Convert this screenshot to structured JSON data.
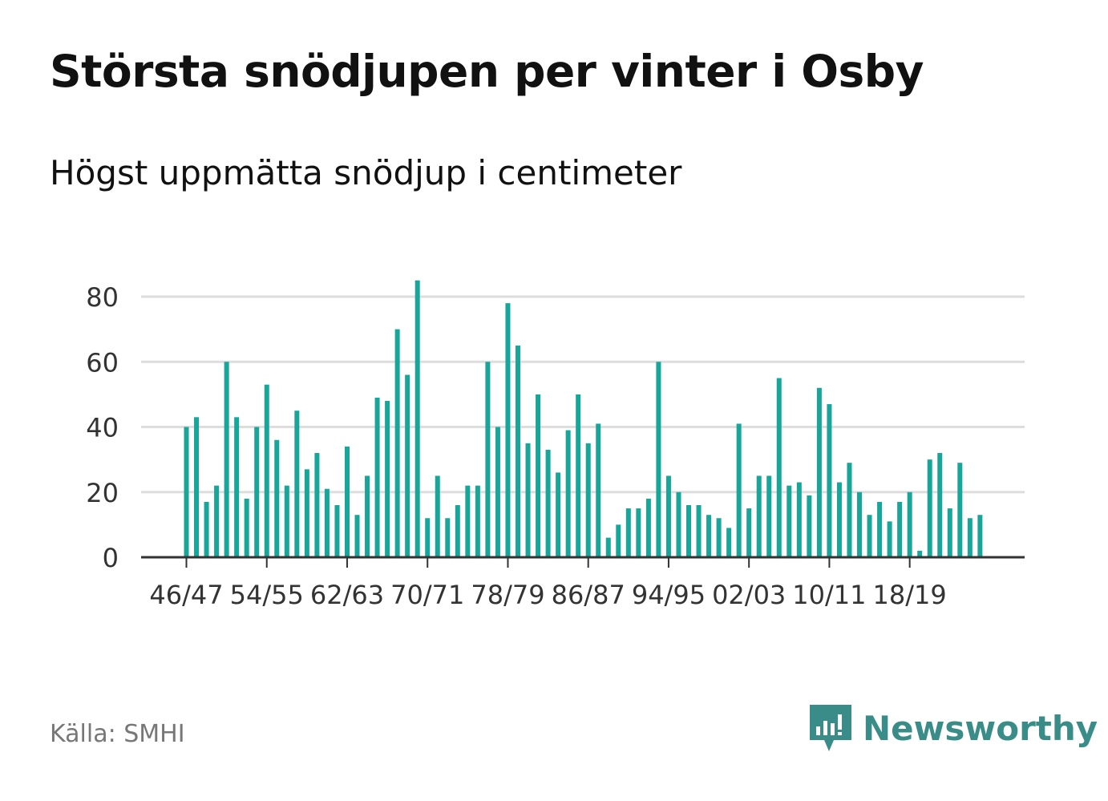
{
  "title": "Största snödjupen per vinter i Osby",
  "subtitle": "Högst uppmätta snödjup i centimeter",
  "source": "Källa: SMHI",
  "brand": {
    "name": "Newsworthy",
    "icon": "newsworthy-chart-icon",
    "color": "#3a8c88"
  },
  "colors": {
    "bar": "#18a59a",
    "grid": "#dddddd",
    "axis": "#333333",
    "tick_text": "#333333"
  },
  "chart_data": {
    "type": "bar",
    "title": "",
    "xlabel": "",
    "ylabel": "",
    "ylim": [
      0,
      85
    ],
    "yticks": [
      0,
      20,
      40,
      60,
      80
    ],
    "grid": true,
    "legend": "none",
    "categories": [
      "46/47",
      "47/48",
      "48/49",
      "49/50",
      "50/51",
      "51/52",
      "52/53",
      "53/54",
      "54/55",
      "55/56",
      "56/57",
      "57/58",
      "58/59",
      "59/60",
      "60/61",
      "61/62",
      "62/63",
      "63/64",
      "64/65",
      "65/66",
      "66/67",
      "67/68",
      "68/69",
      "69/70",
      "70/71",
      "71/72",
      "72/73",
      "73/74",
      "74/75",
      "75/76",
      "76/77",
      "77/78",
      "78/79",
      "79/80",
      "80/81",
      "81/82",
      "82/83",
      "83/84",
      "84/85",
      "85/86",
      "86/87",
      "87/88",
      "88/89",
      "89/90",
      "90/91",
      "91/92",
      "92/93",
      "93/94",
      "94/95",
      "95/96",
      "96/97",
      "97/98",
      "98/99",
      "99/00",
      "00/01",
      "01/02",
      "02/03",
      "03/04",
      "04/05",
      "05/06",
      "06/07",
      "07/08",
      "08/09",
      "09/10",
      "10/11",
      "11/12",
      "12/13",
      "13/14",
      "14/15",
      "15/16",
      "16/17",
      "17/18",
      "18/19",
      "19/20",
      "20/21",
      "21/22",
      "22/23",
      "23/24",
      "24/25",
      "25/26"
    ],
    "labeled_categories": [
      "46/47",
      "54/55",
      "62/63",
      "70/71",
      "78/79",
      "86/87",
      "94/95",
      "02/03",
      "10/11",
      "18/19"
    ],
    "values": [
      40,
      43,
      17,
      22,
      60,
      43,
      18,
      40,
      53,
      36,
      22,
      45,
      27,
      32,
      21,
      16,
      34,
      13,
      25,
      49,
      48,
      70,
      56,
      85,
      12,
      25,
      12,
      16,
      22,
      22,
      60,
      40,
      78,
      65,
      35,
      50,
      33,
      26,
      39,
      50,
      35,
      41,
      6,
      10,
      15,
      15,
      18,
      60,
      25,
      20,
      16,
      16,
      13,
      12,
      9,
      41,
      15,
      25,
      25,
      55,
      22,
      23,
      19,
      52,
      47,
      23,
      29,
      20,
      13,
      17,
      11,
      17,
      20,
      2,
      30,
      32,
      15,
      29,
      12,
      13
    ]
  }
}
